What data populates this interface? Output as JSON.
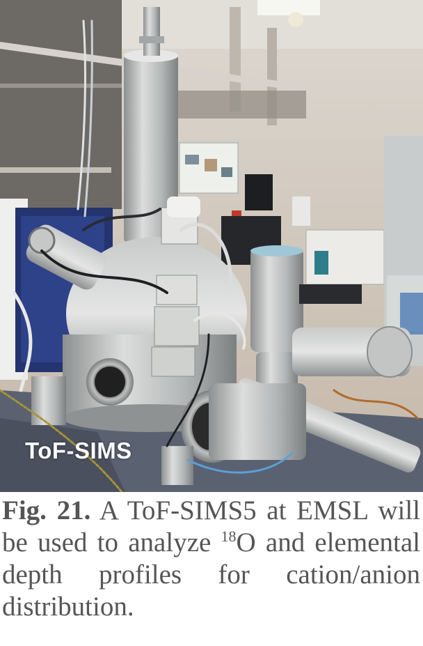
{
  "photo": {
    "label": "ToF-SIMS",
    "colors": {
      "ceiling": "#d8d4cd",
      "wall": "#cbbfb1",
      "steel": "#b9bbbb",
      "chamber_base": "#9c9c9c",
      "frame_blue": "#23346e",
      "table": "#596070"
    }
  },
  "caption": {
    "label": "Fig. 21.",
    "text_before_sup": "A ToF-SIMS5 at EMSL will be used to analyze ",
    "superscript": "18",
    "text_after_sup": "O and elemental depth profiles for cation/anion distribution."
  }
}
